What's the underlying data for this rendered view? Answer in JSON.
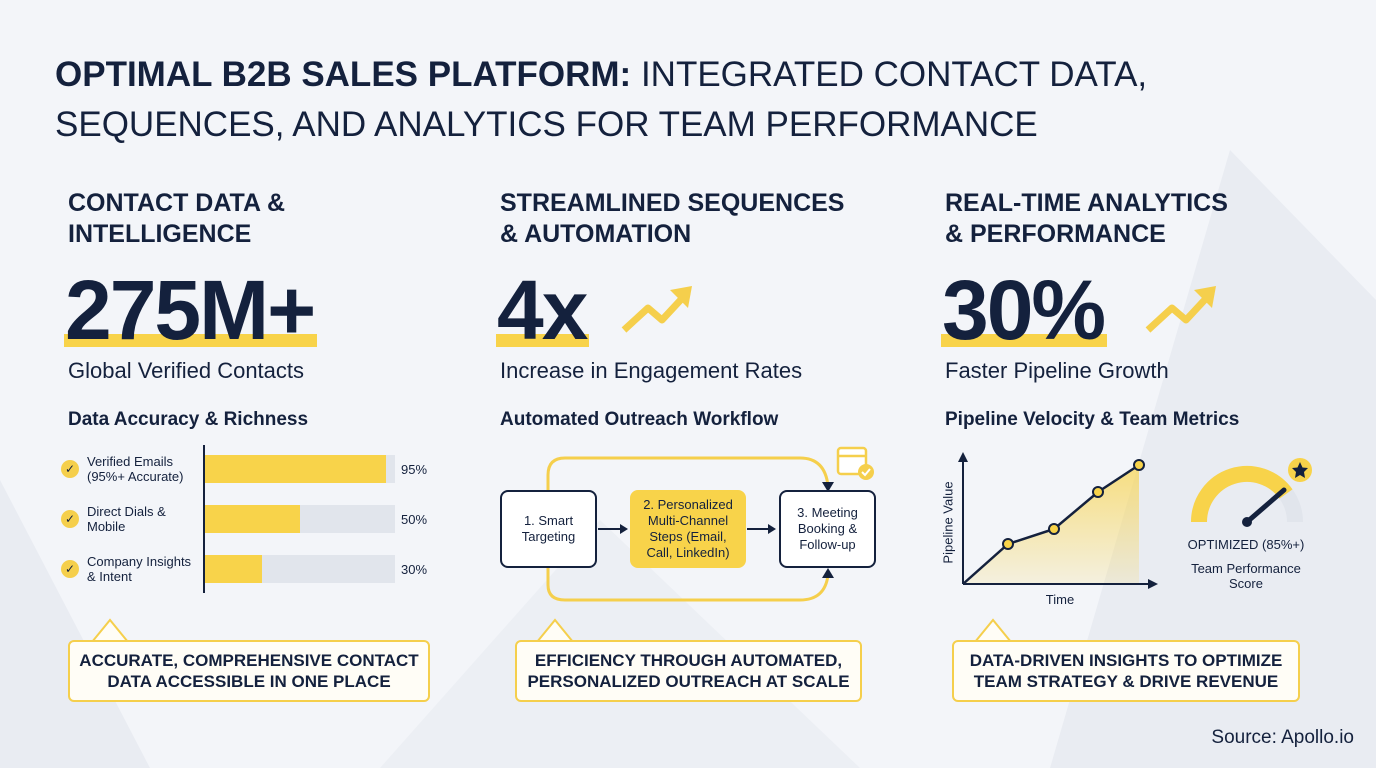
{
  "title": {
    "bold": "OPTIMAL B2B SALES PLATFORM:",
    "lines": [
      "INTEGRATED CONTACT DATA,",
      "SEQUENCES, AND ANALYTICS FOR TEAM PERFORMANCE"
    ]
  },
  "columns": [
    {
      "heading": [
        "CONTACT DATA &",
        "INTELLIGENCE"
      ],
      "stat": "275M+",
      "stat_label": "Global Verified Contacts",
      "section_title": "Data Accuracy & Richness",
      "bars": {
        "categories": [
          [
            "Verified Emails",
            "(95%+ Accurate)"
          ],
          [
            "Direct Dials &",
            "Mobile"
          ],
          [
            "Company Insights",
            "& Intent"
          ]
        ],
        "values": [
          95,
          50,
          30
        ],
        "value_labels": [
          "95%",
          "50%",
          "30%"
        ],
        "xlim": [
          0,
          100
        ]
      },
      "callout": [
        "ACCURATE, COMPREHENSIVE CONTACT",
        "DATA ACCESSIBLE IN ONE PLACE"
      ]
    },
    {
      "heading": [
        "STREAMLINED SEQUENCES",
        "& AUTOMATION"
      ],
      "stat": "4x",
      "stat_label": "Increase in Engagement Rates",
      "section_title": "Automated Outreach Workflow",
      "steps": [
        [
          "1. Smart",
          "Targeting"
        ],
        [
          "2. Personalized",
          "Multi-Channel",
          "Steps (Email,",
          "Call, LinkedIn)"
        ],
        [
          "3. Meeting",
          "Booking &",
          "Follow-up"
        ]
      ],
      "callout": [
        "EFFICIENCY THROUGH AUTOMATED,",
        "PERSONALIZED OUTREACH AT SCALE"
      ]
    },
    {
      "heading": [
        "REAL-TIME ANALYTICS",
        "& PERFORMANCE"
      ],
      "stat": "30%",
      "stat_label": "Faster Pipeline Growth",
      "section_title": "Pipeline Velocity & Team Metrics",
      "chart": {
        "y_label": "Pipeline Value",
        "x_label": "Time"
      },
      "gauge": {
        "status": "OPTIMIZED (85%+)",
        "label": [
          "Team Performance",
          "Score"
        ]
      },
      "callout": [
        "DATA-DRIVEN INSIGHTS TO OPTIMIZE",
        "TEAM STRATEGY & DRIVE REVENUE"
      ]
    }
  ],
  "source": "Source: Apollo.io"
}
